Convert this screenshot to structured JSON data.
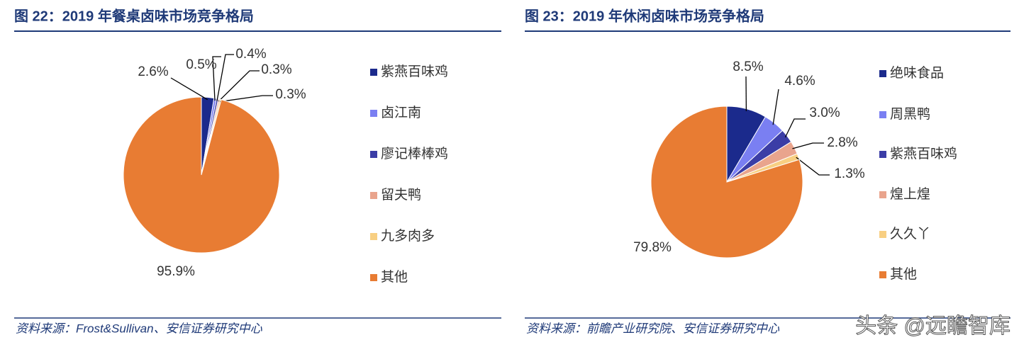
{
  "chart_data": [
    {
      "type": "pie",
      "title": "图 22：2019 年餐桌卤味市场竞争格局",
      "categories": [
        "紫燕百味鸡",
        "卤江南",
        "廖记棒棒鸡",
        "留夫鸭",
        "九多肉多",
        "其他"
      ],
      "values": [
        2.6,
        0.5,
        0.4,
        0.3,
        0.3,
        95.9
      ],
      "value_labels": [
        "2.6%",
        "0.5%",
        "0.4%",
        "0.3%",
        "0.3%",
        "95.9%"
      ],
      "colors": [
        "#1b2a8c",
        "#7a7ff2",
        "#3b3da6",
        "#e9a48d",
        "#f8cf82",
        "#e87c33"
      ],
      "legend": "right"
    },
    {
      "type": "pie",
      "title": "图 23：2019 年休闲卤味市场竞争格局",
      "categories": [
        "绝味食品",
        "周黑鸭",
        "紫燕百味鸡",
        "煌上煌",
        "久久丫",
        "其他"
      ],
      "values": [
        8.5,
        4.6,
        3.0,
        2.8,
        1.3,
        79.8
      ],
      "value_labels": [
        "8.5%",
        "4.6%",
        "3.0%",
        "2.8%",
        "1.3%",
        "79.8%"
      ],
      "colors": [
        "#1b2a8c",
        "#7a7ff2",
        "#3b3da6",
        "#e9a48d",
        "#f8cf82",
        "#e87c33"
      ],
      "legend": "right"
    }
  ],
  "sources": [
    "资料来源：Frost&Sullivan、安信证券研究中心",
    "资料来源：前瞻产业研究院、安信证券研究中心"
  ],
  "watermark": "头条 @远瞻智库"
}
